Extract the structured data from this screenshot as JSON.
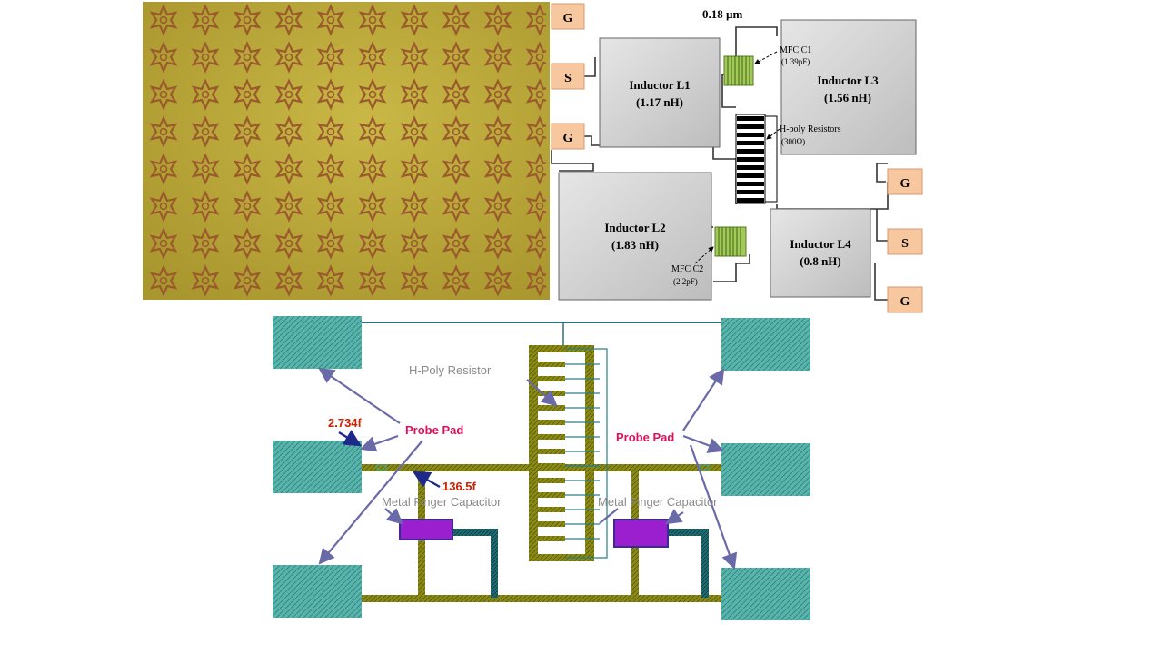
{
  "schematic": {
    "process": "0.18 µm",
    "pads_left": [
      "G",
      "S",
      "G"
    ],
    "pads_right": [
      "G",
      "S",
      "G"
    ],
    "inductor_l1": {
      "name": "Inductor L1",
      "value": "(1.17 nH)"
    },
    "inductor_l2": {
      "name": "Inductor L2",
      "value": "(1.83 nH)"
    },
    "inductor_l3": {
      "name": "Inductor L3",
      "value": "(1.56 nH)"
    },
    "inductor_l4": {
      "name": "Inductor L4",
      "value": "(0.8 nH)"
    },
    "mfc_c1": {
      "name": "MFC C1",
      "value": "(1.39pF)"
    },
    "mfc_c2": {
      "name": "MFC C2",
      "value": "(2.2pF)"
    },
    "resistors": {
      "name": "H-poly Resistors",
      "value": "(300Ω)"
    }
  },
  "layout": {
    "h_poly_resistor": "H-Poly Resistor",
    "probe_pad_left": "Probe Pad",
    "probe_pad_right": "Probe Pad",
    "cap_left": "2.734f",
    "cap_mid": "136.5f",
    "mfc_left": "Metal Finger Capacitor",
    "mfc_right": "Metal Finger Capacitor"
  },
  "colors": {
    "chip_background": "#b9a53a",
    "chip_pattern": "#9a5a2c",
    "pad_fill": "#f7c7a0",
    "block_fill": "#d6d6d6",
    "capacitor_green": "#a4c85a",
    "probe_pad_teal": "#55b0a8",
    "metal_olive": "#7a7a10",
    "capacitor_purple": "#9b1fcf",
    "probe_label": "#e0105a",
    "value_label": "#cc2200",
    "gray_label": "#8a8a8a",
    "arrow": "#6a6aa8"
  }
}
